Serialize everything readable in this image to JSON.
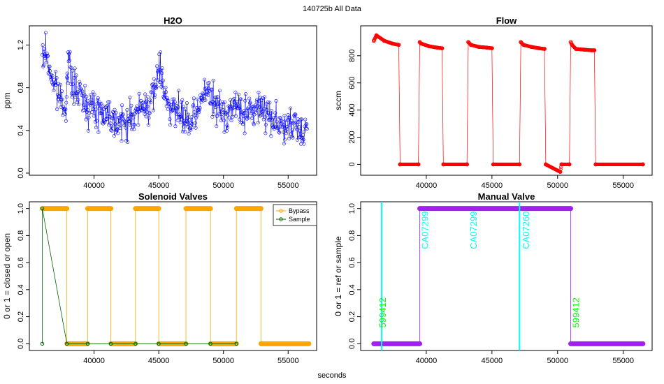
{
  "figure": {
    "title": "140725b   All Data",
    "shared_xlabel": "seconds"
  },
  "chart_data": [
    {
      "id": "h2o",
      "type": "scatter",
      "title": "H2O",
      "xlabel": "",
      "ylabel": "ppm",
      "xlim": [
        35000,
        57200
      ],
      "ylim": [
        -0.02,
        1.38
      ],
      "xticks": [
        40000,
        45000,
        50000,
        55000
      ],
      "yticks": [
        0.0,
        0.4,
        0.8,
        1.2
      ],
      "ytick_labels": [
        "0.0",
        "0.4",
        "0.8",
        "1.2"
      ],
      "series": [
        {
          "color": "#0000ff",
          "marker": "open-circle",
          "x": [
            36000,
            36300,
            36600,
            37000,
            37400,
            37800,
            38000,
            38300,
            38700,
            39200,
            39700,
            40200,
            40700,
            41200,
            41700,
            42200,
            42700,
            43200,
            43700,
            44200,
            44700,
            45000,
            45300,
            45600,
            46000,
            46500,
            47000,
            47500,
            48000,
            48500,
            49000,
            49500,
            50000,
            50500,
            51000,
            51500,
            52000,
            52500,
            53000,
            53500,
            54000,
            54500,
            55000,
            55500,
            56000,
            56500
          ],
          "values": [
            1.05,
            1.15,
            0.95,
            0.8,
            0.7,
            0.62,
            1.05,
            0.85,
            0.75,
            0.7,
            0.62,
            0.6,
            0.58,
            0.55,
            0.5,
            0.45,
            0.5,
            0.55,
            0.6,
            0.65,
            0.72,
            1.05,
            0.85,
            0.7,
            0.62,
            0.55,
            0.5,
            0.45,
            0.55,
            0.8,
            0.7,
            0.62,
            0.55,
            0.6,
            0.62,
            0.58,
            0.55,
            0.6,
            0.62,
            0.55,
            0.5,
            0.45,
            0.42,
            0.44,
            0.4,
            0.45
          ]
        }
      ]
    },
    {
      "id": "flow",
      "type": "scatter",
      "title": "Flow",
      "xlabel": "",
      "ylabel": "sccm",
      "xlim": [
        35000,
        57200
      ],
      "ylim": [
        -80,
        1020
      ],
      "xticks": [
        40000,
        45000,
        50000,
        55000
      ],
      "yticks": [
        0,
        200,
        400,
        600,
        800
      ],
      "ytick_labels": [
        "0",
        "200",
        "400",
        "600",
        "800"
      ],
      "series": [
        {
          "color": "#ff0000",
          "marker": "open-circle",
          "x": [
            36000,
            36200,
            36800,
            37400,
            37900,
            38000,
            39400,
            39500,
            39600,
            40200,
            40800,
            41200,
            41300,
            43100,
            43200,
            43400,
            44000,
            44600,
            45000,
            45100,
            47100,
            47200,
            47400,
            48000,
            48600,
            49000,
            49100,
            50200,
            50300,
            50900,
            51000,
            51100,
            51400,
            52000,
            52600,
            52800,
            52900,
            56500
          ],
          "values": [
            910,
            950,
            910,
            890,
            880,
            0,
            0,
            900,
            890,
            870,
            860,
            855,
            0,
            0,
            900,
            880,
            865,
            860,
            855,
            0,
            0,
            900,
            880,
            865,
            855,
            850,
            0,
            -55,
            0,
            0,
            900,
            880,
            850,
            845,
            840,
            840,
            0,
            0
          ]
        }
      ]
    },
    {
      "id": "solenoid",
      "type": "line",
      "title": "Solenoid Valves",
      "xlabel": "",
      "ylabel": "0 or 1 = closed or open",
      "xlim": [
        35000,
        57200
      ],
      "ylim": [
        -0.05,
        1.05
      ],
      "xticks": [
        40000,
        45000,
        50000,
        55000
      ],
      "yticks": [
        0.0,
        0.2,
        0.4,
        0.6,
        0.8,
        1.0
      ],
      "ytick_labels": [
        "0.0",
        "0.2",
        "0.4",
        "0.6",
        "0.8",
        "1.0"
      ],
      "legend": {
        "position": "top-right",
        "entries": [
          "Bypass",
          "Sample"
        ]
      },
      "series": [
        {
          "name": "Bypass",
          "color": "#ffa500",
          "segments": [
            {
              "x": [
                36000,
                37900
              ],
              "value": 1
            },
            {
              "x": [
                37900,
                39500
              ],
              "value": 0
            },
            {
              "x": [
                39500,
                41300
              ],
              "value": 1
            },
            {
              "x": [
                41300,
                43200
              ],
              "value": 0
            },
            {
              "x": [
                43200,
                45000
              ],
              "value": 1
            },
            {
              "x": [
                45000,
                47100
              ],
              "value": 0
            },
            {
              "x": [
                47100,
                49000
              ],
              "value": 1
            },
            {
              "x": [
                49000,
                51000
              ],
              "value": 0
            },
            {
              "x": [
                51000,
                52900
              ],
              "value": 1
            },
            {
              "x": [
                52900,
                56600
              ],
              "value": 0
            }
          ]
        },
        {
          "name": "Sample",
          "color": "#006400",
          "x": [
            36000,
            36000,
            37900,
            39500,
            41300,
            43200,
            45000,
            47100,
            49000,
            51000
          ],
          "values": [
            0,
            1,
            0,
            0,
            0,
            0,
            0,
            0,
            0,
            0
          ]
        }
      ]
    },
    {
      "id": "manual",
      "type": "line",
      "title": "Manual Valve",
      "xlabel": "",
      "ylabel": "0 or 1 = ref or sample",
      "xlim": [
        35000,
        57200
      ],
      "ylim": [
        -0.05,
        1.05
      ],
      "xticks": [
        40000,
        45000,
        50000,
        55000
      ],
      "yticks": [
        0.0,
        0.2,
        0.4,
        0.6,
        0.8,
        1.0
      ],
      "ytick_labels": [
        "0.0",
        "0.2",
        "0.4",
        "0.6",
        "0.8",
        "1.0"
      ],
      "series": [
        {
          "color": "#a020f0",
          "segments": [
            {
              "x": [
                36000,
                39500
              ],
              "value": 0
            },
            {
              "x": [
                39500,
                51000
              ],
              "value": 1
            },
            {
              "x": [
                51000,
                56500
              ],
              "value": 0
            }
          ]
        }
      ],
      "vlines": [
        {
          "x": 36600,
          "color": "#00ffff"
        },
        {
          "x": 47100,
          "color": "#00ffff"
        }
      ],
      "annotations": [
        {
          "text": "599412",
          "x": 36500,
          "y": 0.23,
          "color": "#00ff00"
        },
        {
          "text": "CA07299",
          "x": 39700,
          "y": 0.84,
          "color": "#00ffff"
        },
        {
          "text": "CA07299",
          "x": 43400,
          "y": 0.84,
          "color": "#00ffff"
        },
        {
          "text": "CA07260",
          "x": 47400,
          "y": 0.84,
          "color": "#00ffff"
        },
        {
          "text": "599412",
          "x": 51200,
          "y": 0.23,
          "color": "#00ff00"
        }
      ]
    }
  ]
}
